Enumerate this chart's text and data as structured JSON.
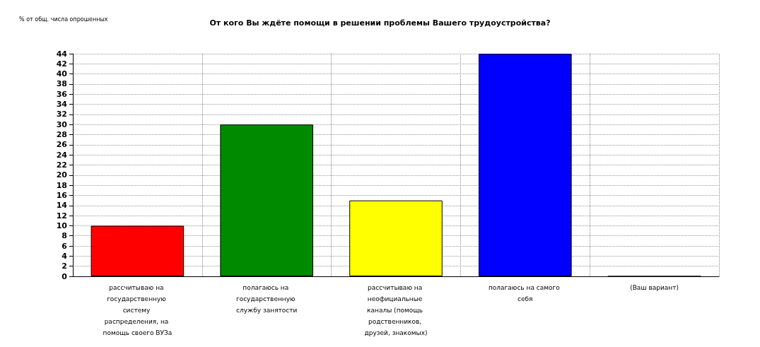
{
  "chart_data": {
    "type": "bar",
    "title": "От кого Вы ждёте помощи в решении проблемы Вашего трудоустройства?",
    "ylabel": "% от общ. числа опрошенных",
    "categories": [
      "рассчитываю на государственную систему распределения, на помощь своего ВУЗа",
      "полагаюсь на государственную службу занятости",
      "рассчитываю на неофициальные каналы (помощь родственников, друзей, знакомых)",
      "полагаюсь на самого себя",
      "(Ваш вариант)"
    ],
    "values": [
      10,
      30,
      15,
      44,
      0
    ],
    "colors": [
      "#ff0000",
      "#008a00",
      "#ffff00",
      "#0000ff",
      "#c0c0c0"
    ],
    "ylim": [
      0,
      44
    ],
    "yticks": [
      0,
      2,
      4,
      6,
      8,
      10,
      12,
      14,
      16,
      18,
      20,
      22,
      24,
      26,
      28,
      30,
      32,
      34,
      36,
      38,
      40,
      42,
      44
    ],
    "grid": true
  }
}
